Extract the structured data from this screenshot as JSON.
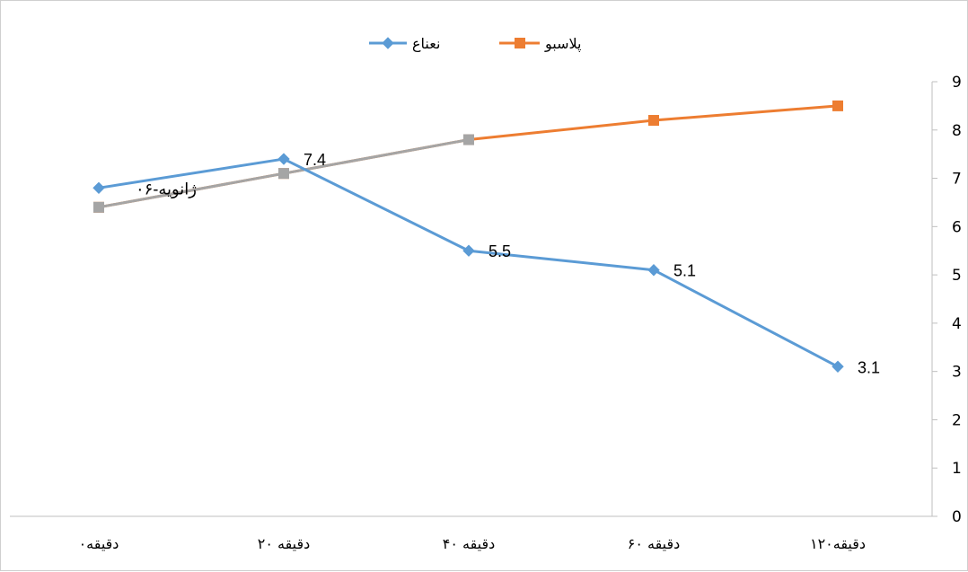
{
  "chart_data": {
    "type": "line",
    "title": "",
    "xlabel": "",
    "ylabel": "",
    "categories": [
      "۰دقیقه",
      "۲۰ دقیقه",
      "۴۰ دقیقه",
      "۶۰ دقیقه",
      "۱۲۰دقیقه"
    ],
    "y_ticks": [
      "0",
      "1",
      "2",
      "3",
      "4",
      "5",
      "6",
      "7",
      "8",
      "9"
    ],
    "ylim": [
      0,
      9
    ],
    "y_axis_side": "right",
    "grid": false,
    "legend_position": "top",
    "series": [
      {
        "name": "نعناع",
        "values": [
          6.8,
          7.4,
          5.5,
          5.1,
          3.1
        ],
        "color": "#5B9BD5",
        "marker": "diamond",
        "data_labels": [
          "",
          "7.4",
          "5.5",
          "5.1",
          "3.1"
        ]
      },
      {
        "name": "پلاسبو",
        "values": [
          6.4,
          7.1,
          7.8,
          8.2,
          8.5
        ],
        "color": "#ED7D31",
        "marker": "square"
      },
      {
        "name": "",
        "values": [
          6.4,
          7.1,
          7.8,
          null,
          null
        ],
        "color": "#A5A5A5",
        "marker": "square"
      }
    ],
    "annotations": [
      "۰۶-ژانویه"
    ]
  }
}
